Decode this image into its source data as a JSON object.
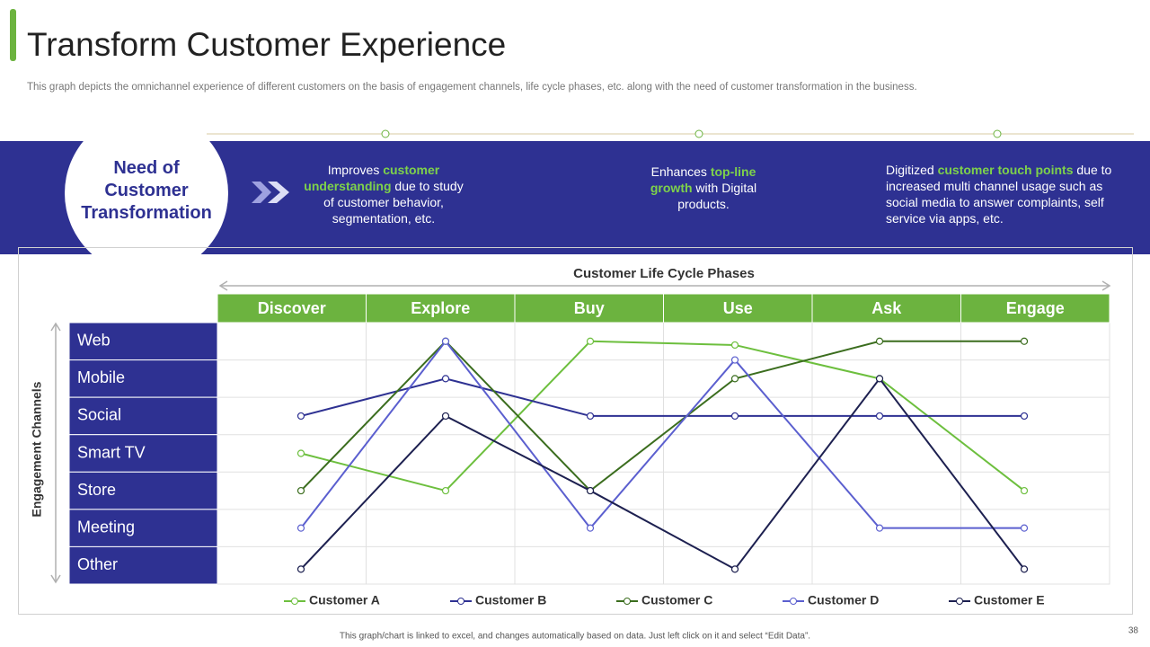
{
  "header": {
    "title": "Transform Customer Experience",
    "subtitle": "This graph depicts the omnichannel experience of different customers on the basis of engagement channels, life cycle phases, etc. along with the need of customer transformation in the business."
  },
  "banner": {
    "heading": "Need of Customer Transformation",
    "items": [
      [
        "Improves ",
        "customer understanding",
        " due to study of customer behavior, segmentation, etc."
      ],
      [
        "Enhances ",
        "top-line growth",
        " with Digital products."
      ],
      [
        "Digitized ",
        "customer touch points",
        " due to increased multi channel usage such as social media to answer complaints, self service via apps, etc."
      ]
    ]
  },
  "chart_data": {
    "type": "line",
    "x_label": "Customer Life Cycle Phases",
    "y_label": "Engagement Channels",
    "categories": [
      "Discover",
      "Explore",
      "Buy",
      "Use",
      "Ask",
      "Engage"
    ],
    "ylim": [
      0.5,
      7.5
    ],
    "yticks": [
      {
        "value": 7,
        "label": "Web"
      },
      {
        "value": 6,
        "label": "Mobile"
      },
      {
        "value": 5,
        "label": "Social"
      },
      {
        "value": 4,
        "label": "Smart TV"
      },
      {
        "value": 3,
        "label": "Store"
      },
      {
        "value": 2,
        "label": "Meeting"
      },
      {
        "value": 1,
        "label": "Other"
      }
    ],
    "series": [
      {
        "name": "Customer A",
        "color": "#6dbf3e",
        "values": [
          4,
          3,
          7,
          6.9,
          6,
          3
        ]
      },
      {
        "name": "Customer B",
        "color": "#2e3192",
        "values": [
          5,
          6,
          5,
          5,
          5,
          5
        ]
      },
      {
        "name": "Customer C",
        "color": "#3b6d1e",
        "values": [
          3,
          7,
          3,
          6,
          7,
          7
        ]
      },
      {
        "name": "Customer D",
        "color": "#5b5fcf",
        "values": [
          2,
          7,
          2,
          6.5,
          2,
          2
        ]
      },
      {
        "name": "Customer E",
        "color": "#1d2050",
        "values": [
          0.9,
          5,
          3,
          0.9,
          6,
          0.9
        ]
      }
    ]
  },
  "footer": {
    "note": "This graph/chart is linked to excel, and changes automatically based on data. Just left click on it and select “Edit Data”.",
    "page": 38
  }
}
